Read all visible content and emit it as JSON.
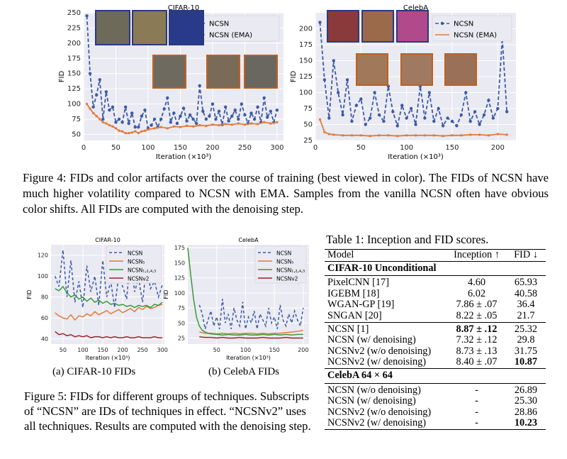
{
  "fig4": {
    "caption": "Figure 4: FIDs and color artifacts over the course of training (best viewed in color). The FIDs of NCSN have much higher volatility compared to NCSN with EMA. Samples from the vanilla NCSN often have obvious color shifts. All FIDs are computed with the denoising step.",
    "colors": {
      "ncsn": "#3b5aa8",
      "ema": "#e07b3a",
      "green": "#3a9a3a",
      "red": "#a0202a"
    }
  },
  "chart_data": [
    {
      "type": "line",
      "title": "CIFAR-10",
      "xlabel": "Iteration (×10³)",
      "ylabel": "FID",
      "xlim": [
        0,
        310
      ],
      "ylim": [
        40,
        250
      ],
      "xticks": [
        "0",
        "50",
        "100",
        "150",
        "200",
        "250",
        "300"
      ],
      "yticks": [
        "50",
        "75",
        "100",
        "125",
        "150",
        "175",
        "200",
        "225",
        "250"
      ],
      "legend": "top-right",
      "series": [
        {
          "name": "NCSN",
          "style": "dashed-dots",
          "x": [
            5,
            10,
            15,
            20,
            25,
            30,
            35,
            40,
            45,
            50,
            55,
            60,
            65,
            70,
            75,
            80,
            85,
            90,
            95,
            100,
            105,
            110,
            115,
            120,
            125,
            130,
            135,
            140,
            145,
            150,
            155,
            160,
            165,
            170,
            175,
            180,
            185,
            190,
            195,
            200,
            205,
            210,
            215,
            220,
            225,
            230,
            235,
            240,
            245,
            250,
            255,
            260,
            265,
            270,
            275,
            280,
            285,
            290,
            295,
            300
          ],
          "y": [
            245,
            150,
            95,
            115,
            140,
            75,
            120,
            90,
            95,
            70,
            75,
            70,
            95,
            68,
            85,
            62,
            62,
            80,
            90,
            60,
            65,
            75,
            62,
            75,
            92,
            110,
            70,
            85,
            68,
            80,
            93,
            72,
            82,
            75,
            68,
            130,
            88,
            75,
            80,
            100,
            75,
            88,
            66,
            95,
            72,
            80,
            90,
            75,
            100,
            82,
            68,
            85,
            75,
            95,
            70,
            110,
            78,
            88,
            70,
            90
          ]
        },
        {
          "name": "NCSN (EMA)",
          "style": "solid-markers",
          "x": [
            5,
            10,
            15,
            20,
            25,
            30,
            35,
            40,
            45,
            50,
            55,
            60,
            65,
            70,
            75,
            80,
            85,
            90,
            95,
            100,
            110,
            120,
            130,
            140,
            150,
            160,
            170,
            180,
            190,
            200,
            210,
            220,
            230,
            240,
            250,
            260,
            270,
            280,
            290,
            300
          ],
          "y": [
            100,
            92,
            85,
            80,
            75,
            70,
            68,
            65,
            63,
            60,
            56,
            55,
            52,
            52,
            53,
            55,
            52,
            55,
            56,
            58,
            60,
            62,
            60,
            63,
            62,
            64,
            63,
            65,
            64,
            66,
            65,
            67,
            66,
            68,
            66,
            68,
            67,
            70,
            68,
            70
          ]
        }
      ]
    },
    {
      "type": "line",
      "title": "CelebA",
      "xlabel": "Iteration (×10³)",
      "ylabel": "FID",
      "xlim": [
        0,
        220
      ],
      "ylim": [
        25,
        225
      ],
      "xticks": [
        "0",
        "50",
        "100",
        "150",
        "200"
      ],
      "yticks": [
        "25",
        "50",
        "75",
        "100",
        "125",
        "150",
        "175",
        "200"
      ],
      "legend": "top-right",
      "series": [
        {
          "name": "NCSN",
          "style": "dashed-dots",
          "x": [
            5,
            10,
            15,
            20,
            25,
            30,
            35,
            40,
            45,
            50,
            55,
            60,
            65,
            70,
            75,
            80,
            85,
            90,
            95,
            100,
            105,
            110,
            115,
            120,
            125,
            130,
            135,
            140,
            145,
            150,
            155,
            160,
            165,
            170,
            175,
            180,
            185,
            190,
            195,
            200,
            205,
            210
          ],
          "y": [
            210,
            120,
            60,
            150,
            100,
            65,
            120,
            55,
            80,
            90,
            50,
            60,
            100,
            65,
            55,
            110,
            70,
            48,
            80,
            60,
            75,
            50,
            110,
            60,
            100,
            55,
            75,
            48,
            60,
            55,
            48,
            65,
            100,
            55,
            70,
            50,
            65,
            88,
            60,
            75,
            185,
            70
          ]
        },
        {
          "name": "NCSN (EMA)",
          "style": "solid-markers",
          "x": [
            5,
            10,
            15,
            20,
            30,
            40,
            50,
            60,
            70,
            80,
            90,
            100,
            110,
            120,
            130,
            140,
            150,
            160,
            170,
            180,
            190,
            200,
            210
          ],
          "y": [
            58,
            38,
            35,
            34,
            33,
            33,
            33,
            32,
            33,
            33,
            32,
            33,
            33,
            33,
            33,
            32,
            33,
            33,
            34,
            34,
            33,
            35,
            34
          ]
        }
      ]
    },
    {
      "type": "line",
      "title": "CIFAR-10",
      "xlabel": "Iteration (×10³)",
      "ylabel": "FID",
      "xlim": [
        20,
        305
      ],
      "ylim": [
        35,
        130
      ],
      "xticks": [
        "50",
        "100",
        "150",
        "200",
        "250",
        "300"
      ],
      "yticks": [
        "40",
        "60",
        "80",
        "100",
        "120"
      ],
      "legend": "top-right",
      "series": [
        {
          "name": "NCSN",
          "style": "dashed",
          "x": [
            30,
            40,
            50,
            60,
            70,
            80,
            90,
            100,
            110,
            120,
            130,
            140,
            150,
            160,
            170,
            180,
            190,
            200,
            210,
            220,
            230,
            240,
            250,
            260,
            270,
            280,
            290,
            300
          ],
          "y": [
            100,
            90,
            125,
            80,
            115,
            75,
            95,
            70,
            110,
            85,
            100,
            72,
            115,
            80,
            95,
            70,
            100,
            90,
            78,
            120,
            85,
            98,
            75,
            110,
            88,
            95,
            80,
            92
          ]
        },
        {
          "name": "NCSN₅",
          "style": "solid",
          "x": [
            30,
            40,
            50,
            60,
            70,
            80,
            90,
            100,
            110,
            120,
            130,
            140,
            150,
            160,
            170,
            180,
            190,
            200,
            210,
            220,
            230,
            240,
            250,
            260,
            270,
            280,
            290,
            300
          ],
          "y": [
            65,
            62,
            60,
            59,
            63,
            58,
            62,
            61,
            64,
            62,
            66,
            63,
            65,
            67,
            64,
            66,
            68,
            65,
            67,
            69,
            66,
            70,
            68,
            71,
            69,
            70,
            72,
            73
          ]
        },
        {
          "name": "NCSN₁,₂,₄,₅",
          "style": "solid",
          "x": [
            30,
            40,
            50,
            60,
            70,
            80,
            90,
            100,
            110,
            120,
            130,
            140,
            150,
            160,
            170,
            180,
            190,
            200,
            210,
            220,
            230,
            240,
            250,
            260,
            270,
            280,
            290,
            300
          ],
          "y": [
            88,
            86,
            90,
            84,
            80,
            82,
            78,
            80,
            76,
            79,
            75,
            77,
            74,
            76,
            73,
            74,
            72,
            73,
            71,
            72,
            70,
            72,
            71,
            72,
            70,
            73,
            72,
            75
          ]
        },
        {
          "name": "NCSNv2",
          "style": "solid",
          "x": [
            30,
            40,
            50,
            60,
            70,
            80,
            90,
            100,
            110,
            120,
            130,
            140,
            150,
            160,
            170,
            180,
            190,
            200,
            210,
            220,
            230,
            240,
            250,
            260,
            270,
            280,
            290,
            300
          ],
          "y": [
            47,
            44,
            45,
            43,
            44,
            42,
            43,
            42,
            43,
            41,
            42,
            42,
            41,
            42,
            41,
            42,
            41,
            41,
            42,
            41,
            41,
            42,
            41,
            41,
            41,
            42,
            41,
            41
          ]
        }
      ]
    },
    {
      "type": "line",
      "title": "CelebA",
      "xlabel": "Iteration (×10³)",
      "ylabel": "FID",
      "xlim": [
        0,
        210
      ],
      "ylim": [
        15,
        180
      ],
      "xticks": [
        "50",
        "100",
        "150",
        "200"
      ],
      "yticks": [
        "25",
        "50",
        "75",
        "100",
        "125",
        "150",
        "175"
      ],
      "legend": "top-right",
      "series": [
        {
          "name": "NCSN",
          "style": "dashed",
          "x": [
            20,
            25,
            30,
            35,
            40,
            45,
            50,
            55,
            60,
            65,
            70,
            75,
            80,
            85,
            90,
            95,
            100,
            105,
            110,
            115,
            120,
            125,
            130,
            135,
            140,
            145,
            150,
            155,
            160,
            165,
            170,
            175,
            180,
            185,
            190,
            195,
            200
          ],
          "y": [
            80,
            65,
            40,
            55,
            70,
            45,
            60,
            40,
            90,
            50,
            65,
            40,
            75,
            55,
            45,
            85,
            40,
            60,
            50,
            70,
            40,
            65,
            55,
            45,
            75,
            50,
            60,
            40,
            80,
            55,
            45,
            65,
            50,
            70,
            55,
            45,
            75
          ]
        },
        {
          "name": "NCSN₅",
          "style": "solid",
          "x": [
            20,
            30,
            40,
            50,
            60,
            70,
            80,
            90,
            100,
            110,
            120,
            130,
            140,
            150,
            160,
            170,
            180,
            190,
            200
          ],
          "y": [
            35,
            33,
            33,
            32,
            33,
            32,
            33,
            32,
            33,
            33,
            32,
            33,
            32,
            33,
            33,
            34,
            35,
            36,
            38
          ]
        },
        {
          "name": "NCSN₁,₂,₄,₅",
          "style": "solid",
          "x": [
            0,
            5,
            10,
            15,
            20,
            25,
            30,
            35,
            40,
            50,
            60,
            70,
            80,
            90,
            100,
            110,
            120,
            130,
            140,
            150,
            160,
            170,
            180,
            190,
            200
          ],
          "y": [
            175,
            130,
            90,
            60,
            45,
            38,
            35,
            33,
            32,
            31,
            30,
            31,
            30,
            30,
            31,
            30,
            30,
            31,
            30,
            31,
            30,
            31,
            30,
            31,
            31
          ]
        },
        {
          "name": "NCSNv2",
          "style": "solid",
          "x": [
            20,
            30,
            40,
            50,
            60,
            70,
            80,
            90,
            100,
            110,
            120,
            130,
            140,
            150,
            160,
            170,
            180,
            190,
            200
          ],
          "y": [
            27,
            26,
            26,
            25,
            26,
            25,
            25,
            26,
            25,
            25,
            25,
            26,
            25,
            25,
            25,
            26,
            25,
            25,
            25
          ]
        }
      ]
    }
  ],
  "fig5": {
    "subcaption_a": "(a) CIFAR-10 FIDs",
    "subcaption_b": "(b) CelebA FIDs",
    "caption": "Figure 5: FIDs for different groups of techniques. Subscripts of “NCSN” are IDs of techniques in effect. “NCSNv2” uses all techniques. Results are computed with the denoising step."
  },
  "table1": {
    "title": "Table 1: Inception and FID scores.",
    "headers": [
      "Model",
      "Inception ↑",
      "FID ↓"
    ],
    "section1": "CIFAR-10 Unconditional",
    "group1": [
      [
        "PixelCNN [17]",
        "4.60",
        "65.93"
      ],
      [
        "IGEBM [18]",
        "6.02",
        "40.58"
      ],
      [
        "WGAN-GP [19]",
        "7.86 ± .07",
        "36.4"
      ],
      [
        "SNGAN [20]",
        "8.22 ± .05",
        "21.7"
      ]
    ],
    "group2": [
      [
        "NCSN [1]",
        "8.87 ± .12",
        "25.32"
      ],
      [
        "NCSN (w/ denoising)",
        "7.32 ± .12",
        "29.8"
      ],
      [
        "NCSNv2 (w/o denoising)",
        "8.73 ± .13",
        "31.75"
      ],
      [
        "NCSNv2 (w/ denoising)",
        "8.40 ± .07",
        "10.87"
      ]
    ],
    "section2": "CelebA 64 × 64",
    "group3": [
      [
        "NCSN (w/o denoising)",
        "-",
        "26.89"
      ],
      [
        "NCSN (w/ denoising)",
        "-",
        "25.30"
      ],
      [
        "NCSNv2 (w/o denoising)",
        "-",
        "28.86"
      ],
      [
        "NCSNv2 (w/ denoising)",
        "-",
        "10.23"
      ]
    ]
  }
}
